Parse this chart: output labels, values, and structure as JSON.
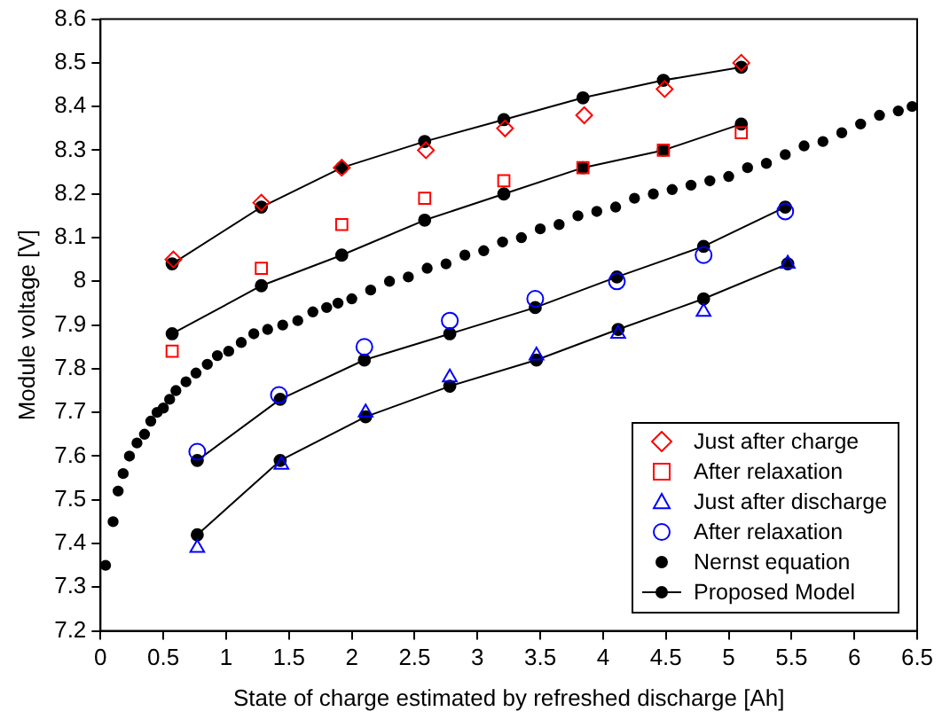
{
  "chart_data": {
    "type": "scatter",
    "xlabel": "State of charge estimated by refreshed discharge [Ah]",
    "ylabel": "Module voltage [V]",
    "xlim": [
      0,
      6.5
    ],
    "xticks": [
      0,
      0.5,
      1,
      1.5,
      2,
      2.5,
      3,
      3.5,
      4,
      4.5,
      5,
      5.5,
      6,
      6.5
    ],
    "ylim": [
      7.2,
      8.6
    ],
    "yticks": [
      7.2,
      7.3,
      7.4,
      7.5,
      7.6,
      7.7,
      7.8,
      7.9,
      8,
      8.1,
      8.2,
      8.3,
      8.4,
      8.5,
      8.6
    ],
    "grid": false,
    "legend": "bottom right",
    "series": [
      {
        "name": "Just after charge",
        "type": "scatter",
        "marker": "diamond",
        "color": "#ff0000",
        "x": [
          0.58,
          1.28,
          1.92,
          2.59,
          3.22,
          3.85,
          4.49,
          5.1
        ],
        "values": [
          8.05,
          8.18,
          8.26,
          8.3,
          8.35,
          8.38,
          8.44,
          8.5
        ]
      },
      {
        "name": "After relaxation",
        "type": "scatter",
        "marker": "square",
        "color": "#ff0000",
        "x": [
          0.57,
          1.28,
          1.92,
          2.58,
          3.21,
          3.84,
          4.48,
          5.1
        ],
        "values": [
          7.84,
          8.03,
          8.13,
          8.19,
          8.23,
          8.26,
          8.3,
          8.34
        ]
      },
      {
        "name": "Just after discharge",
        "type": "scatter",
        "marker": "triangle",
        "color": "#0000ff",
        "x": [
          0.77,
          1.44,
          2.11,
          2.78,
          3.47,
          4.12,
          4.8,
          5.47
        ],
        "values": [
          7.39,
          7.58,
          7.7,
          7.78,
          7.83,
          7.88,
          7.93,
          8.04
        ]
      },
      {
        "name": "After relaxation",
        "type": "scatter",
        "marker": "circle",
        "color": "#0000ff",
        "x": [
          0.77,
          1.42,
          2.1,
          2.78,
          3.46,
          4.11,
          4.8,
          5.45
        ],
        "values": [
          7.61,
          7.74,
          7.85,
          7.91,
          7.96,
          8.0,
          8.06,
          8.16
        ]
      },
      {
        "name": "Nernst equation",
        "type": "scatter",
        "marker": "circle",
        "color": "#000000",
        "x": [
          0.04,
          0.1,
          0.14,
          0.18,
          0.23,
          0.29,
          0.35,
          0.4,
          0.45,
          0.5,
          0.55,
          0.6,
          0.68,
          0.76,
          0.85,
          0.93,
          1.02,
          1.12,
          1.22,
          1.33,
          1.45,
          1.57,
          1.69,
          1.8,
          1.89,
          2.0,
          2.15,
          2.3,
          2.45,
          2.6,
          2.75,
          2.9,
          3.05,
          3.2,
          3.35,
          3.5,
          3.65,
          3.8,
          3.95,
          4.1,
          4.25,
          4.4,
          4.55,
          4.7,
          4.85,
          5.0,
          5.15,
          5.3,
          5.45,
          5.6,
          5.75,
          5.9,
          6.05,
          6.2,
          6.35,
          6.46
        ],
        "values": [
          7.35,
          7.45,
          7.52,
          7.56,
          7.6,
          7.63,
          7.65,
          7.68,
          7.7,
          7.71,
          7.73,
          7.75,
          7.77,
          7.79,
          7.81,
          7.83,
          7.84,
          7.86,
          7.88,
          7.89,
          7.9,
          7.91,
          7.93,
          7.94,
          7.95,
          7.96,
          7.98,
          8.0,
          8.01,
          8.03,
          8.04,
          8.06,
          8.07,
          8.09,
          8.1,
          8.12,
          8.13,
          8.15,
          8.16,
          8.17,
          8.19,
          8.2,
          8.21,
          8.22,
          8.23,
          8.24,
          8.26,
          8.27,
          8.29,
          8.31,
          8.32,
          8.34,
          8.36,
          8.38,
          8.39,
          8.4
        ]
      },
      {
        "name": "Proposed Model",
        "type": "line",
        "marker": "circle",
        "color": "#000000",
        "x": [
          0.57,
          1.28,
          1.92,
          2.58,
          3.21,
          3.84,
          4.48,
          5.1
        ],
        "values": [
          8.04,
          8.17,
          8.26,
          8.32,
          8.37,
          8.42,
          8.46,
          8.49
        ]
      },
      {
        "type": "line",
        "marker": "circle",
        "color": "#000000",
        "x": [
          0.57,
          1.28,
          1.92,
          2.58,
          3.21,
          3.84,
          4.48,
          5.1
        ],
        "values": [
          7.88,
          7.99,
          8.06,
          8.14,
          8.2,
          8.26,
          8.3,
          8.36
        ]
      },
      {
        "type": "line",
        "marker": "circle",
        "color": "#000000",
        "x": [
          0.77,
          1.43,
          2.1,
          2.78,
          3.46,
          4.11,
          4.8,
          5.45
        ],
        "values": [
          7.59,
          7.73,
          7.82,
          7.88,
          7.94,
          8.01,
          8.08,
          8.17
        ]
      },
      {
        "type": "line",
        "marker": "circle",
        "color": "#000000",
        "x": [
          0.77,
          1.43,
          2.11,
          2.78,
          3.47,
          4.12,
          4.8,
          5.47
        ],
        "values": [
          7.42,
          7.59,
          7.69,
          7.76,
          7.82,
          7.89,
          7.96,
          8.04
        ]
      }
    ]
  }
}
